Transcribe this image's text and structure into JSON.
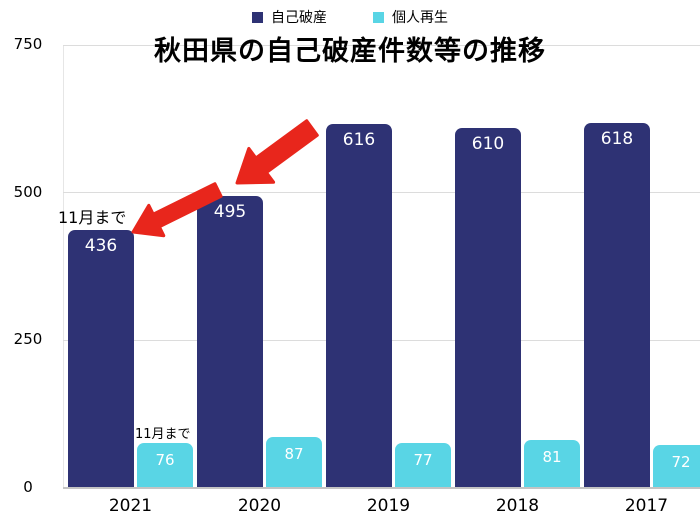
{
  "chart_data": {
    "type": "bar",
    "title": "秋田県の自己破産件数等の推移",
    "categories": [
      "2021",
      "2020",
      "2019",
      "2018",
      "2017"
    ],
    "series": [
      {
        "name": "自己破産",
        "color": "#2e3274",
        "values": [
          436,
          495,
          616,
          610,
          618
        ]
      },
      {
        "name": "個人再生",
        "color": "#59d5e5",
        "values": [
          76,
          87,
          77,
          81,
          72
        ]
      }
    ],
    "ylim": [
      0,
      750
    ],
    "yticks": [
      0,
      250,
      500,
      750
    ],
    "grid": true,
    "legend_position": "top",
    "legend": [
      "自己破産",
      "個人再生"
    ],
    "annotations": [
      {
        "text": "11月まで",
        "target": "2021-自己破産"
      },
      {
        "text": "11月まで",
        "target": "2021-個人再生"
      }
    ]
  },
  "arrow_color": "#e8261c"
}
